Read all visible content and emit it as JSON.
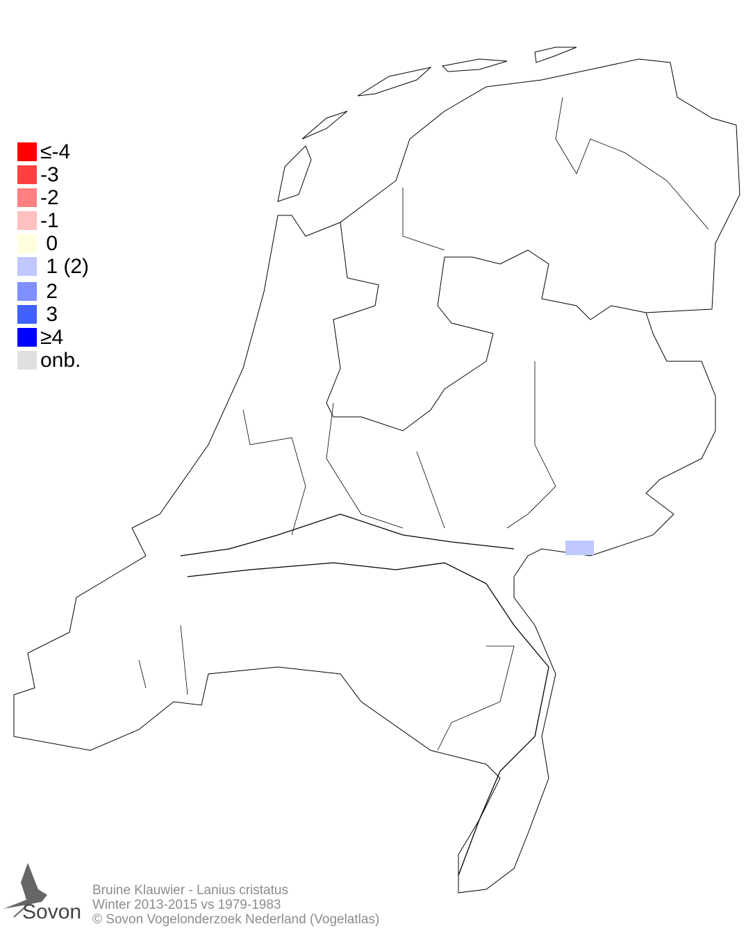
{
  "legend": {
    "items": [
      {
        "label": "≤-4",
        "color": "#ff0000"
      },
      {
        "label": "-3",
        "color": "#ff4040"
      },
      {
        "label": "-2",
        "color": "#ff8080"
      },
      {
        "label": "-1",
        "color": "#ffc0c0"
      },
      {
        "label": " 0",
        "color": "#ffffe0"
      },
      {
        "label": " 1 (2)",
        "color": "#c0c8ff"
      },
      {
        "label": " 2",
        "color": "#8090ff"
      },
      {
        "label": " 3",
        "color": "#4060ff"
      },
      {
        "label": "≥4",
        "color": "#0000ff"
      },
      {
        "label": "onb.",
        "color": "#e0e0e0"
      }
    ]
  },
  "map": {
    "region": "Netherlands",
    "highlighted_cells": [
      {
        "value": 1,
        "color": "#c0c8ff",
        "location": "east Gelderland (Achterhoek border)"
      }
    ]
  },
  "footer": {
    "logo": "Sovon",
    "line1": "Bruine Klauwier - Lanius cristatus",
    "line2": "Winter 2013-2015 vs 1979-1983",
    "line3": "© Sovon Vogelonderzoek Nederland (Vogelatlas)"
  }
}
